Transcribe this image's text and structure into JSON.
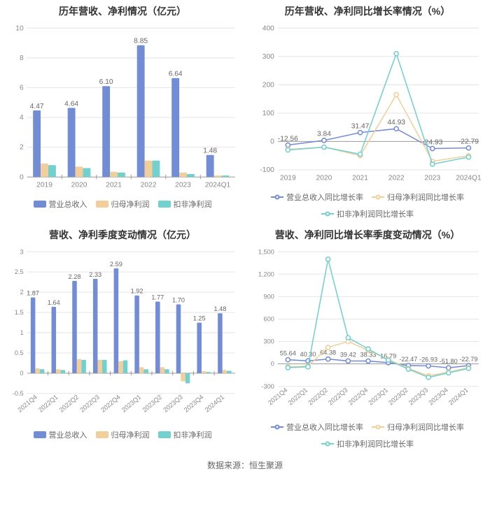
{
  "source_text": "数据来源：恒生聚源",
  "colors": {
    "series1": "#738cd6",
    "series2": "#f2cf9a",
    "series3": "#72d0cf",
    "axis": "#999999",
    "grid": "#e5e5e5",
    "tick_text": "#888888",
    "value_text": "#666666",
    "title_text": "#333333"
  },
  "chart1": {
    "title": "历年营收、净利情况（亿元）",
    "type": "bar",
    "categories": [
      "2019",
      "2020",
      "2021",
      "2022",
      "2023",
      "2024Q1"
    ],
    "series": [
      {
        "name": "营业总收入",
        "color_key": "series1",
        "values": [
          4.47,
          4.64,
          6.1,
          8.85,
          6.64,
          1.48
        ]
      },
      {
        "name": "归母净利润",
        "color_key": "series2",
        "values": [
          0.9,
          0.7,
          0.35,
          1.1,
          0.3,
          0.1
        ]
      },
      {
        "name": "扣非净利润",
        "color_key": "series3",
        "values": [
          0.8,
          0.6,
          0.3,
          1.1,
          0.2,
          0.1
        ]
      }
    ],
    "y": {
      "min": 0,
      "max": 10,
      "step": 2
    },
    "bar_width": 0.22,
    "title_fontsize": 14,
    "label_fontsize": 10,
    "background": "#ffffff"
  },
  "chart2": {
    "title": "历年营收、净利同比增长率情况（%）",
    "type": "line",
    "categories": [
      "2019",
      "2020",
      "2021",
      "2022",
      "2023",
      "2024Q1"
    ],
    "series": [
      {
        "name": "营业总收入同比增长率",
        "color_key": "series1",
        "values": [
          -12.56,
          3.84,
          31.47,
          44.93,
          -24.93,
          -22.79
        ]
      },
      {
        "name": "归母净利润同比增长率",
        "color_key": "series2",
        "values": [
          -28,
          -20,
          -50,
          165,
          -70,
          -50
        ]
      },
      {
        "name": "扣非净利润同比增长率",
        "color_key": "series3",
        "values": [
          -30,
          -20,
          -45,
          310,
          -80,
          -55
        ]
      }
    ],
    "label_series_index": 0,
    "y": {
      "min": -100,
      "max": 400,
      "step": 100
    },
    "line_width": 1.5,
    "marker_radius": 3,
    "title_fontsize": 14,
    "label_fontsize": 10,
    "background": "#ffffff"
  },
  "chart3": {
    "title": "营收、净利季度变动情况（亿元）",
    "type": "bar",
    "categories": [
      "2021Q4",
      "2022Q1",
      "2022Q2",
      "2022Q3",
      "2022Q4",
      "2023Q1",
      "2023Q2",
      "2023Q3",
      "2023Q4",
      "2024Q1"
    ],
    "series": [
      {
        "name": "营业总收入",
        "color_key": "series1",
        "values": [
          1.87,
          1.64,
          2.28,
          2.33,
          2.59,
          1.92,
          1.77,
          1.7,
          1.25,
          1.48
        ]
      },
      {
        "name": "归母净利润",
        "color_key": "series2",
        "values": [
          0.12,
          0.1,
          0.35,
          0.33,
          0.3,
          0.15,
          0.15,
          -0.2,
          0.05,
          0.08
        ]
      },
      {
        "name": "扣非净利润",
        "color_key": "series3",
        "values": [
          0.1,
          0.08,
          0.33,
          0.33,
          0.32,
          0.1,
          0.1,
          -0.25,
          0.03,
          0.06
        ]
      }
    ],
    "y": {
      "min": -0.5,
      "max": 3,
      "step": 0.5
    },
    "bar_width": 0.22,
    "title_fontsize": 14,
    "label_fontsize": 9,
    "rotate_xlabels": -40,
    "background": "#ffffff"
  },
  "chart4": {
    "title": "营收、净利同比增长率季度变动情况（%）",
    "type": "line",
    "categories": [
      "2021Q4",
      "2022Q1",
      "2022Q2",
      "2022Q3",
      "2022Q4",
      "2023Q1",
      "2023Q2",
      "2023Q3",
      "2023Q4",
      "2024Q1"
    ],
    "series": [
      {
        "name": "营业总收入同比增长率",
        "color_key": "series1",
        "values": [
          55.64,
          40.3,
          64.38,
          39.42,
          38.33,
          16.79,
          -22.47,
          -26.93,
          -51.8,
          -22.79
        ]
      },
      {
        "name": "归母净利润同比增长率",
        "color_key": "series2",
        "values": [
          -40,
          -30,
          220,
          300,
          180,
          60,
          -60,
          -160,
          -110,
          -50
        ]
      },
      {
        "name": "扣非净利润同比增长率",
        "color_key": "series3",
        "values": [
          -50,
          -40,
          1400,
          350,
          200,
          50,
          -70,
          -180,
          -120,
          -60
        ]
      }
    ],
    "label_series_index": 0,
    "y": {
      "min": -300,
      "max": 1500,
      "step": 300
    },
    "line_width": 1.5,
    "marker_radius": 3,
    "title_fontsize": 14,
    "label_fontsize": 9,
    "rotate_xlabels": -40,
    "background": "#ffffff"
  }
}
